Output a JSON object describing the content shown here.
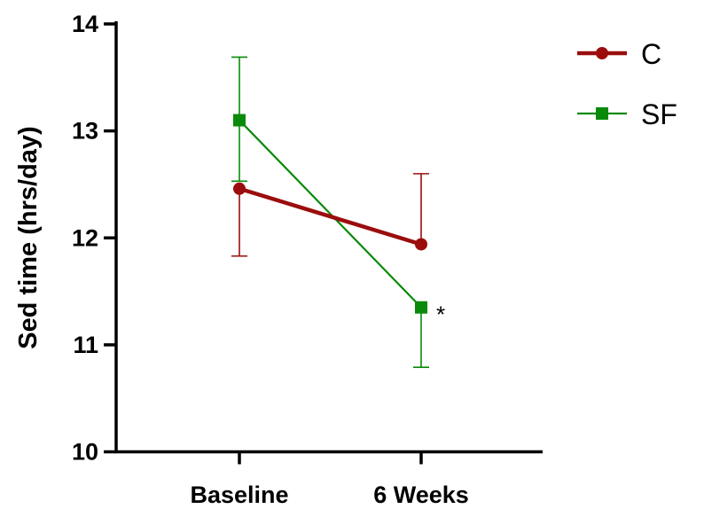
{
  "chart_data": {
    "type": "line",
    "title": "",
    "xlabel": "",
    "ylabel": "Sed time (hrs/day)",
    "categories": [
      "Baseline",
      "6 Weeks"
    ],
    "ylim": [
      10,
      14
    ],
    "yticks": [
      10,
      11,
      12,
      13,
      14
    ],
    "yticks_labels": [
      "10",
      "11",
      "12",
      "13",
      "14"
    ],
    "grid": false,
    "legend_position": "top-right",
    "series": [
      {
        "name": "C",
        "color": "#9b0d0d",
        "marker": "circle",
        "values": [
          12.46,
          11.94
        ],
        "err_upper": [
          12.46,
          12.6
        ],
        "err_lower": [
          11.83,
          11.94
        ]
      },
      {
        "name": "SF",
        "color": "#0a8a0a",
        "marker": "square",
        "values": [
          13.1,
          11.35
        ],
        "err_upper": [
          13.69,
          11.35
        ],
        "err_lower": [
          12.53,
          10.79
        ]
      }
    ],
    "annotations": [
      {
        "text": "*",
        "category": "6 Weeks",
        "series": "SF"
      }
    ]
  }
}
